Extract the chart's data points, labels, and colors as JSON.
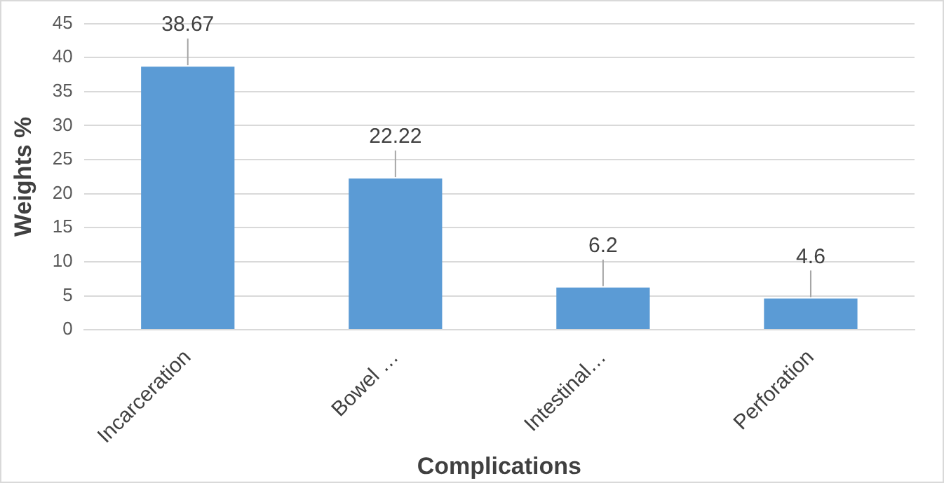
{
  "chart_data": {
    "type": "bar",
    "xlabel": "Complications",
    "ylabel": "Weights %",
    "categories": [
      "Incarceration",
      "Bowel …",
      "Intestinal…",
      "Perforation"
    ],
    "values": [
      38.67,
      22.22,
      6.2,
      4.6
    ],
    "color": "#5b9bd5",
    "ylim": [
      0,
      45
    ],
    "yticks": [
      0,
      5,
      10,
      15,
      20,
      25,
      30,
      35,
      40,
      45
    ],
    "grid": "y",
    "data_labels": true
  }
}
